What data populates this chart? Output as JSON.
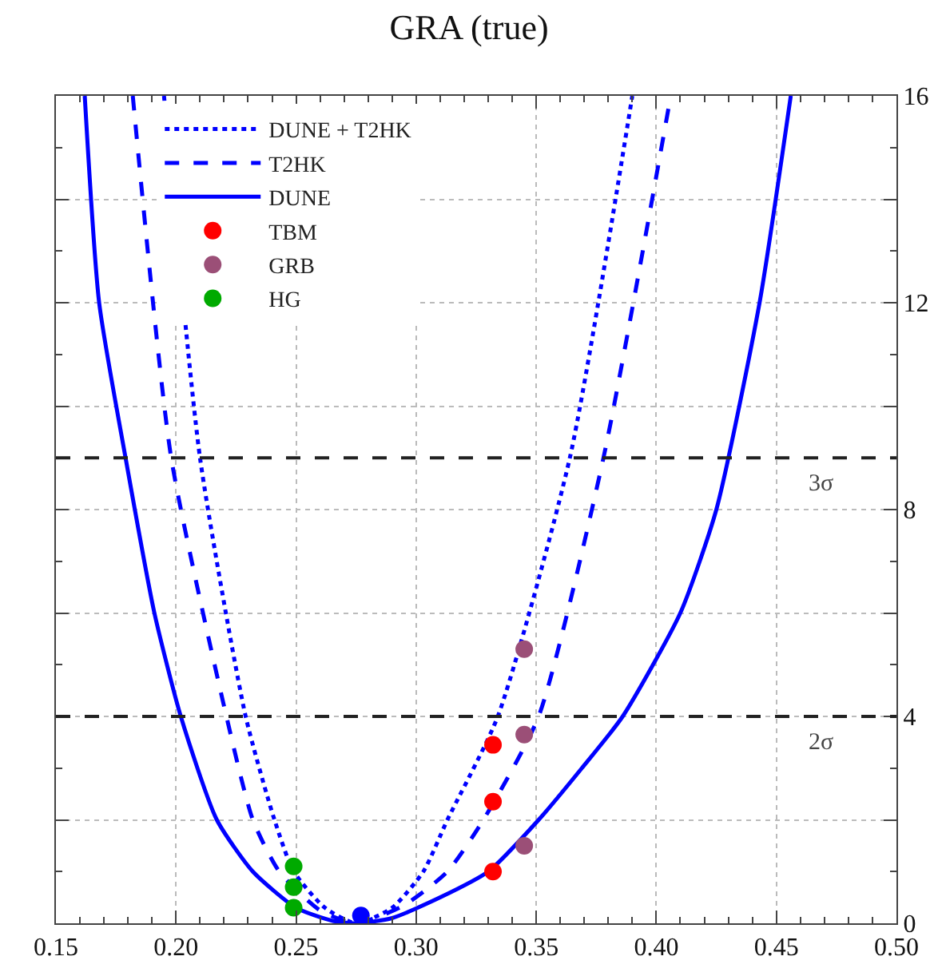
{
  "chart_data": {
    "type": "line",
    "title": "GRA (true)",
    "xlim": [
      0.15,
      0.5
    ],
    "xticks": [
      {
        "value": 0.15,
        "label": "0.15"
      },
      {
        "value": 0.2,
        "label": "0.20"
      },
      {
        "value": 0.25,
        "label": "0.25"
      },
      {
        "value": 0.3,
        "label": "0.30"
      },
      {
        "value": 0.35,
        "label": "0.35"
      },
      {
        "value": 0.4,
        "label": "0.40"
      },
      {
        "value": 0.45,
        "label": "0.45"
      },
      {
        "value": 0.5,
        "label": "0.50"
      }
    ],
    "ylim": [
      0,
      16
    ],
    "yticks": [
      0,
      {
        "value": 2,
        "label": null
      },
      4,
      {
        "value": 6,
        "label": null
      },
      8,
      {
        "value": 10,
        "label": null
      },
      12,
      {
        "value": 14,
        "label": null
      },
      16
    ],
    "grid": true,
    "legend": "top left",
    "series": [
      {
        "type": "line",
        "name": "DUNE + T2HK",
        "color": "#0000ff",
        "line_style": "dotted",
        "x": [
          0.195,
          0.21,
          0.229,
          0.241,
          0.249,
          0.262,
          0.275,
          0.29,
          0.303,
          0.313,
          0.334,
          0.364,
          0.39
        ],
        "values": [
          16,
          9,
          4,
          2,
          1,
          0.3,
          0,
          0.3,
          1,
          2,
          4,
          9,
          16
        ]
      },
      {
        "type": "line",
        "name": "T2HK",
        "color": "#0000ff",
        "line_style": "dashed",
        "x": [
          0.182,
          0.198,
          0.221,
          0.232,
          0.243,
          0.26,
          0.275,
          0.295,
          0.313,
          0.328,
          0.351,
          0.378,
          0.406
        ],
        "values": [
          16,
          9,
          4,
          2,
          1,
          0.25,
          0,
          0.35,
          1,
          2,
          4,
          9,
          16
        ]
      },
      {
        "type": "line",
        "name": "DUNE",
        "color": "#0000ff",
        "line_style": "solid",
        "x": [
          0.162,
          0.168,
          0.179,
          0.191,
          0.202,
          0.217,
          0.232,
          0.25,
          0.265,
          0.275,
          0.29,
          0.31,
          0.33,
          0.351,
          0.369,
          0.386,
          0.41,
          0.425,
          0.443,
          0.456
        ],
        "values": [
          16,
          12,
          9,
          6,
          4,
          2,
          1,
          0.3,
          0.05,
          0,
          0.1,
          0.5,
          1,
          2,
          3,
          4,
          6,
          8,
          12,
          16
        ]
      },
      {
        "type": "scatter",
        "name": "TBM",
        "color": "#ff0000",
        "marker": "circle",
        "x": [
          0.332,
          0.332,
          0.332
        ],
        "values": [
          1.0,
          2.35,
          3.45
        ]
      },
      {
        "type": "scatter",
        "name": "GRB",
        "color": "#9b4f77",
        "marker": "circle",
        "x": [
          0.345,
          0.345,
          0.345
        ],
        "values": [
          1.5,
          3.65,
          5.3
        ]
      },
      {
        "type": "scatter",
        "name": "HG",
        "color": "#00aa00",
        "marker": "circle",
        "x": [
          0.249,
          0.249,
          0.249
        ],
        "values": [
          0.3,
          0.7,
          1.1
        ]
      },
      {
        "type": "scatter",
        "color": "#0000ff",
        "marker": "circle",
        "x": [
          0.277
        ],
        "values": [
          0.15
        ]
      }
    ],
    "ref_lines": [
      {
        "axis": "y",
        "value": 9,
        "label": "3σ",
        "color": "#222222",
        "line_style": "dashed"
      },
      {
        "axis": "y",
        "value": 4,
        "label": "2σ",
        "color": "#222222",
        "line_style": "dashed"
      }
    ]
  }
}
